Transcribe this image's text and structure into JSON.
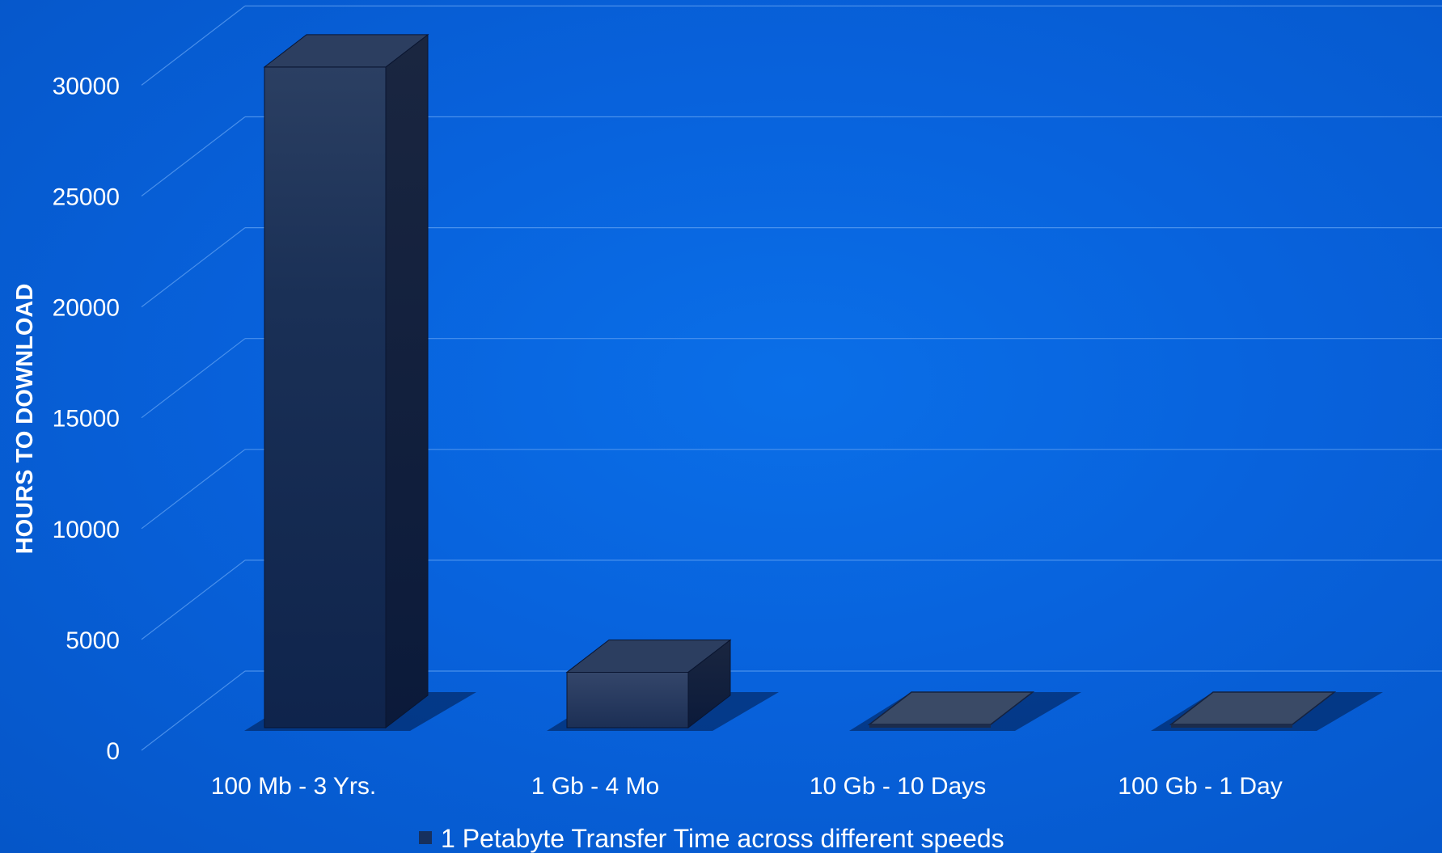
{
  "chart_data": {
    "type": "bar",
    "style": "3d-column",
    "categories": [
      "100 Mb - 3 Yrs.",
      "1 Gb - 4 Mo",
      "10 Gb - 10 Days",
      "100 Gb - 1 Day"
    ],
    "series": [
      {
        "name": "1 Petabyte Transfer Time across different speeds",
        "values": [
          29800,
          2500,
          200,
          20
        ]
      }
    ],
    "ylabel": "HOURS TO DOWNLOAD",
    "xlabel": "",
    "ylim": [
      0,
      35000
    ],
    "yticks": [
      0,
      5000,
      10000,
      15000,
      20000,
      25000,
      30000
    ],
    "grid": true,
    "legend_position": "bottom"
  },
  "colors": {
    "background": "#0862dc",
    "gridline": "#5a9cf0",
    "bar_front": "#16305e",
    "bar_side": "#0e1f40",
    "bar_top": "#2c3e60",
    "text": "#ffffff"
  }
}
